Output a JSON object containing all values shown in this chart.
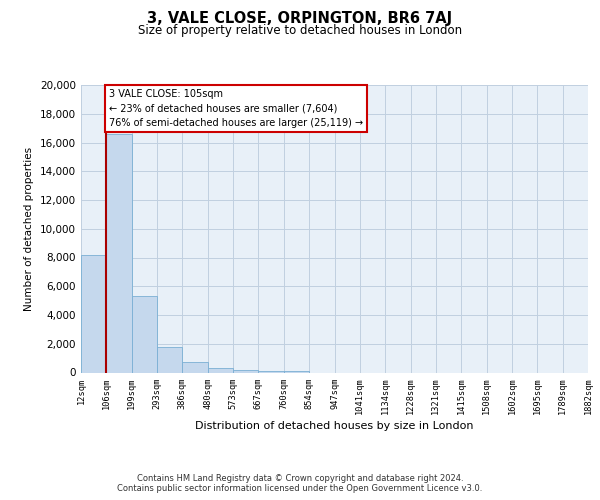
{
  "title": "3, VALE CLOSE, ORPINGTON, BR6 7AJ",
  "subtitle": "Size of property relative to detached houses in London",
  "xlabel": "Distribution of detached houses by size in London",
  "ylabel": "Number of detached properties",
  "bar_values": [
    8200,
    16600,
    5300,
    1800,
    750,
    280,
    150,
    130,
    100,
    0,
    0,
    0,
    0,
    0,
    0,
    0,
    0,
    0,
    0,
    0
  ],
  "bar_labels": [
    "12sqm",
    "106sqm",
    "199sqm",
    "293sqm",
    "386sqm",
    "480sqm",
    "573sqm",
    "667sqm",
    "760sqm",
    "854sqm",
    "947sqm",
    "1041sqm",
    "1134sqm",
    "1228sqm",
    "1321sqm",
    "1415sqm",
    "1508sqm",
    "1602sqm",
    "1695sqm",
    "1789sqm",
    "1882sqm"
  ],
  "bar_color": "#c5d8ed",
  "bar_edge_color": "#7aafd4",
  "ylim": [
    0,
    20000
  ],
  "yticks": [
    0,
    2000,
    4000,
    6000,
    8000,
    10000,
    12000,
    14000,
    16000,
    18000,
    20000
  ],
  "vline_x": 1,
  "vline_color": "#aa0000",
  "annotation_title": "3 VALE CLOSE: 105sqm",
  "annotation_line1": "← 23% of detached houses are smaller (7,604)",
  "annotation_line2": "76% of semi-detached houses are larger (25,119) →",
  "annotation_box_color": "#ffffff",
  "annotation_box_edge": "#cc0000",
  "footer1": "Contains HM Land Registry data © Crown copyright and database right 2024.",
  "footer2": "Contains public sector information licensed under the Open Government Licence v3.0.",
  "bg_color": "#e8f0f8",
  "fig_bg_color": "#ffffff"
}
